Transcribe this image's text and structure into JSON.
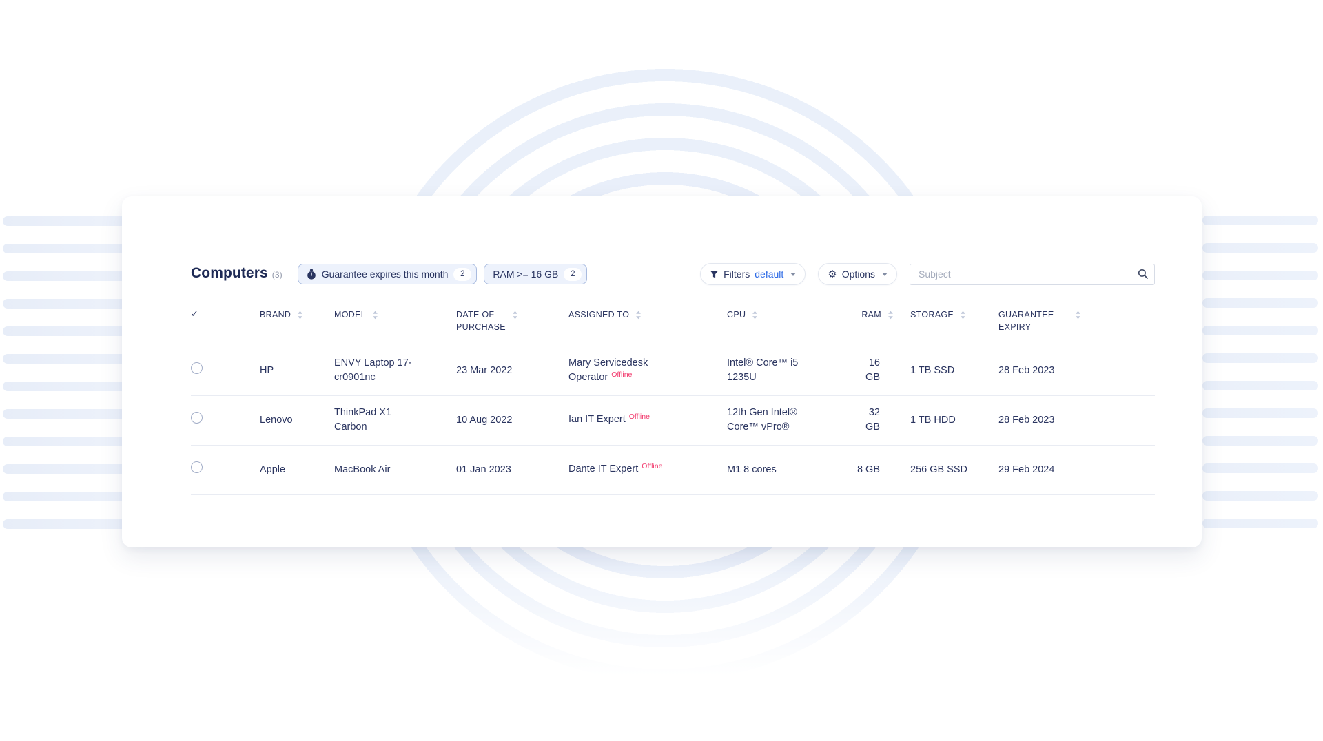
{
  "page": {
    "title": "Computers",
    "count": "(3)"
  },
  "icons": {
    "gear": "⚙",
    "select_all": "✓"
  },
  "filter_chips": [
    {
      "label": "Guarantee expires this month",
      "count": "2",
      "icon": "stopwatch-icon"
    },
    {
      "label": "RAM >= 16 GB",
      "count": "2",
      "icon": "none"
    }
  ],
  "toolbar": {
    "filters_label": "Filters",
    "filters_value": "default",
    "options_label": "Options",
    "search_placeholder": "Subject"
  },
  "table": {
    "columns": [
      "BRAND",
      "MODEL",
      "DATE OF\nPURCHASE",
      "ASSIGNED TO",
      "CPU",
      "RAM",
      "STORAGE",
      "GUARANTEE\nEXPIRY"
    ],
    "rows": [
      {
        "brand": "HP",
        "model": "ENVY Laptop 17-\ncr0901nc",
        "date_of_purchase": "23 Mar 2022",
        "assigned_to": "Mary Servicedesk\nOperator",
        "status": "Offline",
        "cpu": "Intel® Core™ i5\n1235U",
        "ram": "16 GB",
        "storage": "1 TB SSD",
        "guarantee_expiry": "28 Feb 2023"
      },
      {
        "brand": "Lenovo",
        "model": "ThinkPad X1\nCarbon",
        "date_of_purchase": "10 Aug 2022",
        "assigned_to": "Ian IT Expert",
        "status": "Offline",
        "cpu": "12th Gen Intel®\nCore™ vPro®",
        "ram": "32 GB",
        "storage": "1 TB HDD",
        "guarantee_expiry": "28 Feb 2023"
      },
      {
        "brand": "Apple",
        "model": "MacBook Air",
        "date_of_purchase": "01 Jan 2023",
        "assigned_to": "Dante IT Expert",
        "status": "Offline",
        "cpu": "M1 8 cores",
        "ram": "8 GB",
        "storage": "256 GB\nSSD",
        "guarantee_expiry": "29 Feb 2024"
      }
    ]
  },
  "colors": {
    "navy_text": "#293460",
    "accent_blue": "#2e6be6",
    "offline_pink": "#f23b6e",
    "chip_bg": "#edf2fc",
    "chip_border": "#a9bbdf",
    "ring_blue": "#e9effa",
    "stripe_blue": "#e7edf8"
  }
}
